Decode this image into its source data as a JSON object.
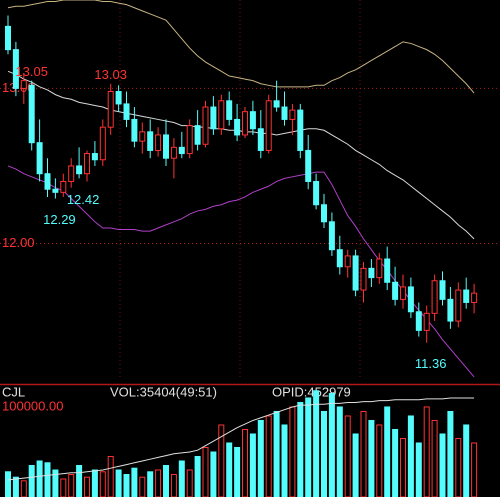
{
  "chart_data": {
    "type": "candlestick",
    "up_color": "#ff3232",
    "down_color": "#54fcfc",
    "ylim": [
      11.12,
      13.57
    ],
    "yticks": [
      {
        "value": 13,
        "label": "13.00"
      },
      {
        "value": 12,
        "label": "12.00"
      }
    ],
    "grid": true,
    "open": [
      13.4,
      13.25,
      13.0,
      13.02,
      12.65,
      12.45,
      12.35,
      12.33,
      12.4,
      12.5,
      12.45,
      12.58,
      12.54,
      12.75,
      12.98,
      12.9,
      12.8,
      12.66,
      12.72,
      12.6,
      12.7,
      12.55,
      12.62,
      12.58,
      12.76,
      12.64,
      12.88,
      12.74,
      12.92,
      12.8,
      12.7,
      12.85,
      12.74,
      12.6,
      12.92,
      12.88,
      12.8,
      12.86,
      12.6,
      12.4,
      12.25,
      12.14,
      11.96,
      11.85,
      11.92,
      11.7,
      11.84,
      11.78,
      11.9,
      11.75,
      11.64,
      11.72,
      11.56,
      11.44,
      11.55,
      11.76,
      11.64,
      11.5,
      11.7,
      11.62
    ],
    "high": [
      13.47,
      13.3,
      13.1,
      13.05,
      12.8,
      12.55,
      12.42,
      12.45,
      12.55,
      12.62,
      12.6,
      12.66,
      12.8,
      13.03,
      13.02,
      12.98,
      12.88,
      12.78,
      12.8,
      12.75,
      12.8,
      12.68,
      12.72,
      12.8,
      12.86,
      12.92,
      12.95,
      12.96,
      12.98,
      12.9,
      12.88,
      12.92,
      12.86,
      12.96,
      13.05,
      12.98,
      12.9,
      12.9,
      12.7,
      12.45,
      12.32,
      12.2,
      12.05,
      11.96,
      11.96,
      11.88,
      11.9,
      11.94,
      11.98,
      11.85,
      11.8,
      11.78,
      11.62,
      11.6,
      11.8,
      11.82,
      11.72,
      11.75,
      11.78,
      11.74
    ],
    "low": [
      13.22,
      12.95,
      12.9,
      12.6,
      12.4,
      12.3,
      12.29,
      12.3,
      12.36,
      12.42,
      12.4,
      12.5,
      12.5,
      12.7,
      12.85,
      12.75,
      12.62,
      12.58,
      12.55,
      12.56,
      12.5,
      12.42,
      12.55,
      12.55,
      12.6,
      12.62,
      12.7,
      12.7,
      12.76,
      12.66,
      12.68,
      12.7,
      12.55,
      12.58,
      12.85,
      12.76,
      12.7,
      12.55,
      12.35,
      12.22,
      12.1,
      11.92,
      11.8,
      11.78,
      11.66,
      11.62,
      11.72,
      11.74,
      11.7,
      11.6,
      11.58,
      11.52,
      11.4,
      11.36,
      11.5,
      11.6,
      11.45,
      11.46,
      11.58,
      11.55
    ],
    "close": [
      13.25,
      13.0,
      13.05,
      12.65,
      12.45,
      12.35,
      12.33,
      12.4,
      12.5,
      12.45,
      12.58,
      12.54,
      12.75,
      12.98,
      12.9,
      12.8,
      12.66,
      12.72,
      12.6,
      12.7,
      12.55,
      12.62,
      12.58,
      12.76,
      12.64,
      12.88,
      12.74,
      12.92,
      12.8,
      12.7,
      12.85,
      12.74,
      12.6,
      12.92,
      12.88,
      12.8,
      12.86,
      12.6,
      12.4,
      12.25,
      12.14,
      11.96,
      11.85,
      11.92,
      11.7,
      11.84,
      11.78,
      11.9,
      11.75,
      11.64,
      11.72,
      11.56,
      11.44,
      11.55,
      11.76,
      11.64,
      11.5,
      11.7,
      11.62,
      11.68
    ],
    "overlays": [
      {
        "color": "#c8b482",
        "values": [
          13.52,
          13.53,
          13.53,
          13.54,
          13.55,
          13.56,
          13.56,
          13.57,
          13.57,
          13.57,
          13.57,
          13.57,
          13.56,
          13.56,
          13.55,
          13.54,
          13.52,
          13.5,
          13.48,
          13.46,
          13.44,
          13.38,
          13.32,
          13.26,
          13.21,
          13.17,
          13.14,
          13.11,
          13.08,
          13.07,
          13.06,
          13.05,
          13.03,
          13.02,
          13.01,
          13.01,
          13.01,
          13.01,
          13.01,
          13.02,
          13.02,
          13.05,
          13.07,
          13.1,
          13.12,
          13.15,
          13.18,
          13.21,
          13.24,
          13.27,
          13.3,
          13.29,
          13.27,
          13.25,
          13.22,
          13.18,
          13.13,
          13.08,
          13.03,
          12.97
        ]
      },
      {
        "color": "#d8d8d8",
        "values": [
          13.11,
          13.09,
          13.06,
          13.04,
          13.01,
          12.99,
          12.96,
          12.94,
          12.93,
          12.91,
          12.9,
          12.89,
          12.88,
          12.86,
          12.85,
          12.84,
          12.83,
          12.82,
          12.81,
          12.8,
          12.79,
          12.78,
          12.76,
          12.76,
          12.75,
          12.75,
          12.74,
          12.74,
          12.73,
          12.73,
          12.72,
          12.72,
          12.71,
          12.71,
          12.7,
          12.71,
          12.72,
          12.73,
          12.74,
          12.74,
          12.73,
          12.7,
          12.67,
          12.64,
          12.6,
          12.57,
          12.54,
          12.51,
          12.47,
          12.44,
          12.41,
          12.37,
          12.33,
          12.29,
          12.25,
          12.21,
          12.17,
          12.12,
          12.08,
          12.03
        ]
      },
      {
        "color": "#b040c8",
        "values": [
          12.5,
          12.48,
          12.45,
          12.43,
          12.41,
          12.39,
          12.36,
          12.34,
          12.29,
          12.24,
          12.19,
          12.14,
          12.1,
          12.1,
          12.09,
          12.09,
          12.09,
          12.08,
          12.08,
          12.1,
          12.12,
          12.14,
          12.16,
          12.19,
          12.21,
          12.22,
          12.24,
          12.25,
          12.27,
          12.28,
          12.3,
          12.33,
          12.35,
          12.37,
          12.4,
          12.42,
          12.43,
          12.44,
          12.45,
          12.46,
          12.46,
          12.38,
          12.28,
          12.18,
          12.11,
          12.03,
          11.96,
          11.89,
          11.83,
          11.76,
          11.7,
          11.63,
          11.57,
          11.51,
          11.45,
          11.38,
          11.32,
          11.26,
          11.2,
          11.14
        ]
      }
    ],
    "high_labels": [
      13.03,
      13.05
    ],
    "low_labels": [
      12.29,
      12.42,
      11.36
    ],
    "volume": {
      "labels": [
        "CJL",
        "VOL:35404(49:51)",
        "OPID:452979"
      ],
      "ylim": [
        0,
        124400
      ],
      "yticks": [
        {
          "value": 100000,
          "label": "100000.00"
        }
      ],
      "values": [
        28000,
        22000,
        18000,
        35000,
        40000,
        38000,
        30000,
        20000,
        25000,
        35000,
        22000,
        30000,
        28000,
        45000,
        30000,
        25000,
        32000,
        22000,
        28000,
        30000,
        35000,
        25000,
        40000,
        30000,
        45000,
        55000,
        50000,
        80000,
        60000,
        55000,
        75000,
        70000,
        85000,
        90000,
        95000,
        80000,
        100000,
        105000,
        110000,
        118000,
        95000,
        115000,
        100000,
        90000,
        70000,
        95000,
        85000,
        80000,
        100000,
        75000,
        65000,
        90000,
        60000,
        100000,
        85000,
        70000,
        95000,
        65000,
        80000,
        60000
      ],
      "ma": {
        "color": "#e0e0e0",
        "values": [
          19000,
          20000,
          21000,
          22000,
          23000,
          24000,
          25000,
          26000,
          27000,
          27000,
          28000,
          29000,
          30000,
          32000,
          34000,
          36000,
          38000,
          40000,
          42000,
          44000,
          46000,
          48000,
          49000,
          50000,
          52000,
          57000,
          62000,
          67000,
          72000,
          77000,
          81000,
          85000,
          88000,
          91000,
          94000,
          97000,
          100000,
          102000,
          102000,
          103000,
          103000,
          104000,
          104000,
          105000,
          105000,
          106000,
          106000,
          107000,
          107000,
          108000,
          108000,
          108000,
          108000,
          109000,
          109000,
          109000,
          110000,
          110000,
          110000,
          110000
        ]
      }
    }
  }
}
